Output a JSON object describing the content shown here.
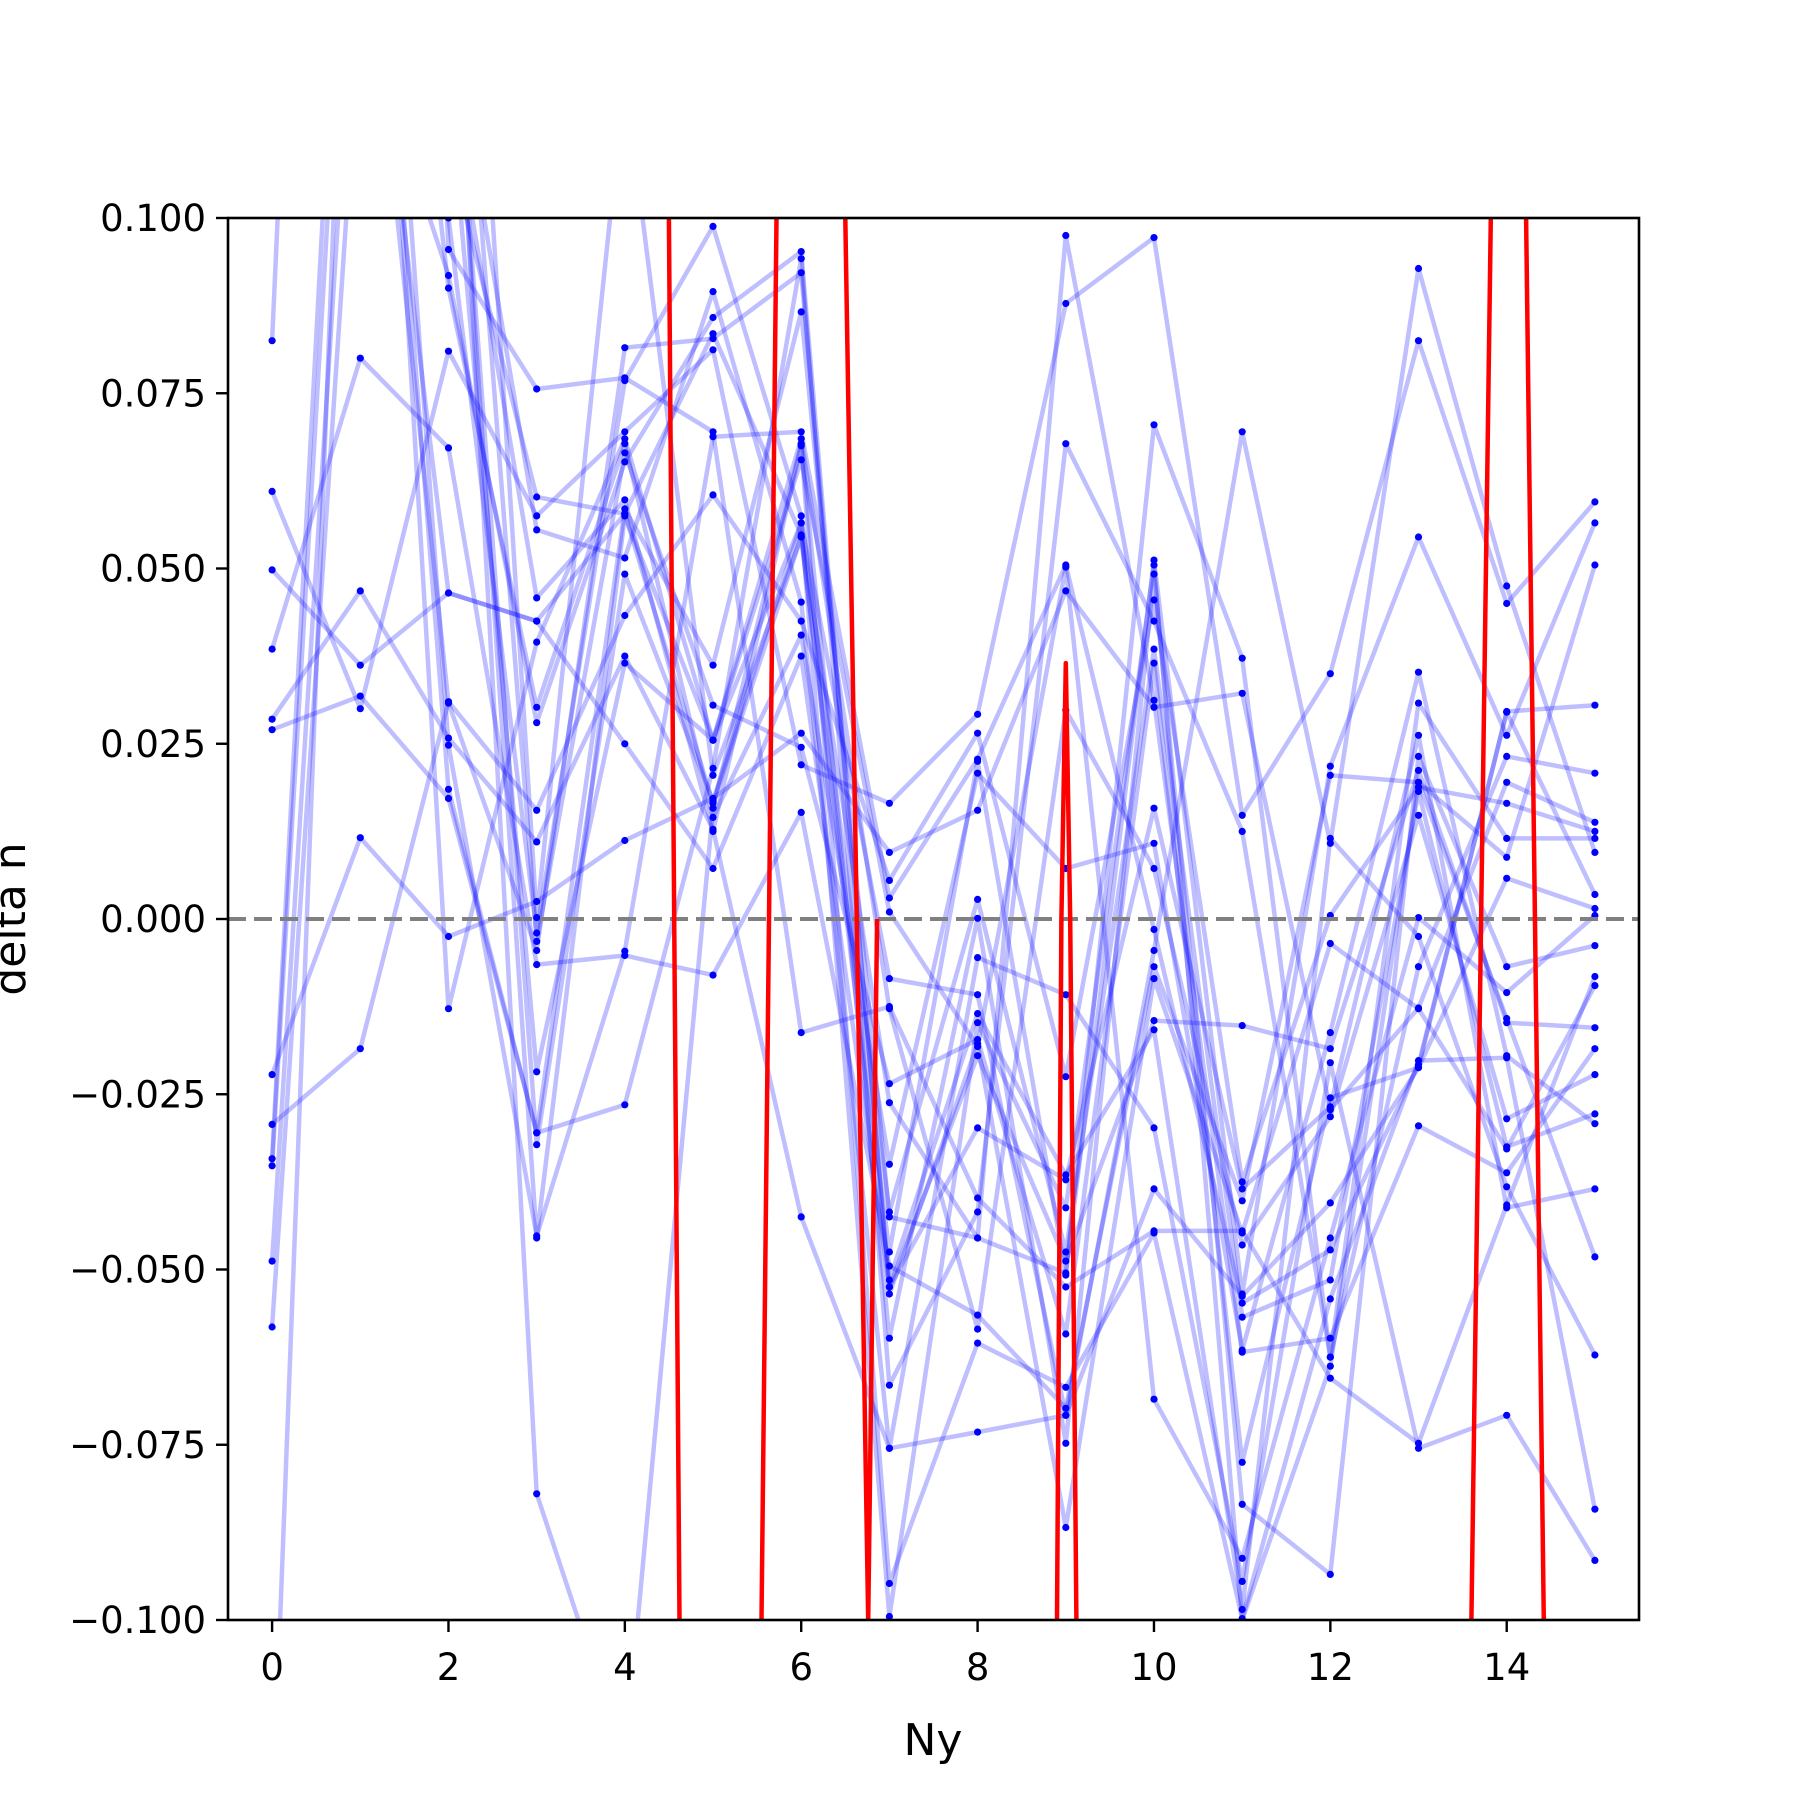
{
  "chart_data": {
    "type": "line",
    "title": "",
    "xlabel": "Ny",
    "ylabel": "delta n",
    "xlim": [
      -0.5,
      15.5
    ],
    "ylim": [
      -0.1,
      0.1
    ],
    "grid": false,
    "xticks": [
      0,
      2,
      4,
      6,
      8,
      10,
      12,
      14
    ],
    "xtick_labels": [
      "0",
      "2",
      "4",
      "6",
      "8",
      "10",
      "12",
      "14"
    ],
    "yticks": [
      0.1,
      0.075,
      0.05,
      0.025,
      0.0,
      -0.025,
      -0.05,
      -0.075,
      -0.1
    ],
    "ytick_labels": [
      "0.100",
      "0.075",
      "0.050",
      "0.025",
      "0.000",
      "−0.025",
      "−0.050",
      "−0.075",
      "−0.100"
    ],
    "reference_line": {
      "y": 0.0,
      "style": "dashed",
      "color": "#808080"
    },
    "colors": {
      "trajectory": "#0000ff",
      "highlight": "#ff0000",
      "reference": "#808080"
    },
    "x": [
      0,
      1,
      2,
      3,
      4,
      5,
      6,
      7,
      8,
      9,
      10,
      11,
      12,
      13,
      14,
      15
    ],
    "trajectories": [
      {
        "values": [
          0.0825,
          0.36,
          0.0955,
          0.0756,
          0.0772,
          0.0695,
          -0.0162,
          -0.0125,
          -0.0398,
          -0.0525,
          -0.0445,
          -0.0445,
          -0.0655,
          -0.0748,
          -0.0408,
          -0.0082
        ]
      },
      {
        "values": [
          0.061,
          0.03,
          0.081,
          0.0575,
          0.0695,
          0.0812,
          0.022,
          0.0165,
          0.0292,
          0.0878,
          0.0972,
          0.0148,
          0.035,
          0.0825,
          0.045,
          0.0595
        ]
      },
      {
        "values": [
          0.0498,
          0.0362,
          0.0465,
          0.0425,
          0.0578,
          0.0835,
          0.0548,
          -0.0262,
          -0.0455,
          -0.0505,
          0.0512,
          -0.0535,
          0.0218,
          0.0545,
          0.0262,
          0.0565
        ]
      },
      {
        "values": [
          0.0385,
          0.08,
          0.0672,
          -0.0065,
          -0.0052,
          -0.008,
          0.0152,
          -0.0495,
          -0.0565,
          -0.0698,
          -0.0068,
          -0.0402,
          0.0205,
          0.0195,
          0.0088,
          0.0505
        ]
      },
      {
        "values": [
          0.0285,
          0.0468,
          0.0258,
          0.011,
          0.0375,
          0.0128,
          -0.0425,
          -0.0755,
          -0.0732,
          -0.0708,
          -0.0385,
          -0.0538,
          -0.0405,
          -0.0212,
          0.0296,
          0.0305
        ]
      },
      {
        "values": [
          0.027,
          0.0318,
          0.0172,
          -0.0305,
          -0.0265,
          0.0215,
          0.0942,
          -0.0665,
          -0.0418,
          0.0678,
          0.0425,
          0.0125,
          -0.0625,
          -0.0068,
          0.0232,
          0.0208
        ]
      },
      {
        "values": [
          -0.0222,
          0.0116,
          -0.0025,
          0.0025,
          0.0112,
          0.0172,
          0.0265,
          0.0095,
          0.0155,
          0.0468,
          0.0302,
          0.0322,
          -0.0272,
          -0.0127,
          0.0195,
          0.0138
        ]
      },
      {
        "values": [
          -0.0293,
          -0.0185,
          0.031,
          0.0155,
          0.0433,
          0.0605,
          0.0425,
          0.0055,
          0.0265,
          -0.0225,
          0.0455,
          -0.0375,
          0.0005,
          0.0188,
          0.0165,
          0.0125
        ]
      },
      {
        "values": [
          -0.0342,
          0.2,
          0.0248,
          -0.0452,
          -0.0046,
          0.0688,
          0.0695,
          0.003,
          0.0228,
          0.0505,
          -0.0015,
          -0.0548,
          -0.0472,
          -0.0208,
          0.0295,
          0.0035
        ]
      },
      {
        "values": [
          -0.0352,
          0.18,
          0.0185,
          -0.0305,
          0.0585,
          0.0362,
          0.0866,
          -0.0425,
          -0.0455,
          0.0975,
          0.0312,
          -0.0618,
          -0.0598,
          -0.0295,
          -0.0362,
          -0.0185
        ]
      },
      {
        "values": [
          -0.0488,
          0.15,
          0.0308,
          -0.0045,
          0.0815,
          0.0828,
          0.0922,
          -0.0525,
          -0.0195,
          -0.0488,
          -0.0145,
          -0.0152,
          -0.0185,
          0.0212,
          -0.0148,
          -0.0155
        ]
      },
      {
        "values": [
          -0.0582,
          0.13,
          0.0918,
          0.028,
          0.0652,
          0.0858,
          0.0952,
          -0.0535,
          -0.0178,
          -0.0868,
          -0.0085,
          -0.0448,
          -0.0035,
          -0.0128,
          -0.0328,
          -0.0095
        ]
      },
      {
        "values": [
          0.12,
          0.2,
          -0.0128,
          0.0395,
          0.0685,
          0.0255,
          0.0565,
          -0.0085,
          -0.0108,
          -0.0708,
          -0.0045,
          0.0695,
          0.0108,
          0.0928,
          0.0475,
          0.0095
        ]
      },
      {
        "values": [
          0.2,
          0.14,
          0.11,
          0.0602,
          0.0578,
          0.0165,
          0.0545,
          -0.0475,
          0.0225,
          -0.0508,
          0.0705,
          0.0372,
          -0.0625,
          0.0308,
          0.0115,
          0.0115
        ]
      },
      {
        "values": [
          -0.13,
          0.2,
          0.09,
          0.0302,
          0.0678,
          0.0145,
          0.0405,
          -0.035,
          0.0208,
          0.0072,
          0.0108,
          -0.0615,
          -0.0162,
          0.0352,
          -0.0195,
          -0.0292
        ]
      },
      {
        "values": [
          0.14,
          0.2,
          0.1,
          -0.002,
          0.0768,
          0.0988,
          0.0575,
          -0.0418,
          0.0028,
          -0.0475,
          0.0385,
          -0.0568,
          -0.0515,
          0.0182,
          -0.0325,
          -0.0278
        ]
      },
      {
        "values": [
          0.2,
          0.15,
          0.0465,
          0.0425,
          0.025,
          0.0072,
          0.0375,
          -0.0525,
          -0.0298,
          -0.0372,
          0.0158,
          -0.0385,
          -0.0268,
          0.0262,
          -0.0412,
          -0.0385
        ]
      },
      {
        "values": [
          0.18,
          0.16,
          0.12,
          -0.0218,
          0.0365,
          0.0255,
          0.0685,
          -0.0128,
          -0.0585,
          0.0298,
          0.0072,
          -0.0465,
          -0.0282,
          0.0148,
          -0.0285,
          -0.0222
        ]
      },
      {
        "values": [
          0.2,
          0.12,
          0.14,
          -0.0455,
          0.0575,
          0.0255,
          0.0655,
          0.001,
          -0.0182,
          0.0502,
          -0.0685,
          -0.0912,
          -0.0455,
          0.0002,
          -0.0105,
          0.0005
        ]
      },
      {
        "values": [
          0.2,
          0.18,
          0.15,
          -0.082,
          -0.12,
          0.0158,
          0.0678,
          -0.0598,
          0.0001,
          -0.0748,
          0.0492,
          -0.0835,
          -0.0935,
          0.0232,
          -0.0068,
          -0.0038
        ]
      },
      {
        "values": [
          0.13,
          0.2,
          0.16,
          -0.0032,
          0.0665,
          0.0305,
          0.0245,
          -0.0235,
          -0.0172,
          -0.0592,
          0.0365,
          -0.0775,
          -0.0255,
          -0.0212,
          0.0058,
          0.0015
        ]
      },
      {
        "values": [
          0.2,
          0.15,
          0.2,
          0.0002,
          0.12,
          0.0205,
          0.0545,
          -0.0515,
          -0.0135,
          -0.0365,
          -0.0158,
          -0.0985,
          0.0115,
          -0.0025,
          -0.0382,
          -0.0622
        ]
      },
      {
        "values": [
          0.15,
          0.2,
          0.13,
          0.0555,
          0.0515,
          0.0895,
          0.0452,
          -0.0755,
          -0.0055,
          -0.0108,
          -0.0298,
          -0.0945,
          -0.0205,
          -0.0755,
          -0.0708,
          -0.0915
        ]
      },
      {
        "values": [
          0.18,
          0.2,
          0.12,
          0.0458,
          0.0598,
          0.0125,
          0.0675,
          -0.0948,
          -0.0605,
          -0.0668,
          -0.0448,
          -0.0998,
          -0.0542,
          -0.0202,
          -0.0198,
          -0.0842
        ]
      },
      {
        "values": [
          0.2,
          0.16,
          0.14,
          -0.0322,
          0.0492,
          0.0168,
          0.0565,
          -0.0995,
          -0.0148,
          -0.0412,
          0.0505,
          -0.1,
          -0.0638,
          0.0195,
          -0.0142,
          -0.0482
        ]
      }
    ],
    "highlight": [
      {
        "x": [
          4.5,
          4.62
        ],
        "y": [
          0.1,
          -0.1
        ]
      },
      {
        "x": [
          5.55,
          5.72
        ],
        "y": [
          -0.1,
          0.1
        ]
      },
      {
        "x": [
          6.5,
          6.76
        ],
        "y": [
          0.1,
          -0.1
        ]
      },
      {
        "x": [
          6.76,
          6.86
        ],
        "y": [
          -0.1,
          0.0
        ]
      },
      {
        "x": [
          8.9,
          8.95,
          9.0,
          9.05,
          9.12
        ],
        "y": [
          -0.1,
          0.0,
          0.0365,
          0.0,
          -0.1
        ]
      },
      {
        "x": [
          13.6,
          13.82
        ],
        "y": [
          -0.1,
          0.1
        ]
      },
      {
        "x": [
          14.22,
          14.42
        ],
        "y": [
          0.1,
          -0.1
        ]
      }
    ]
  }
}
